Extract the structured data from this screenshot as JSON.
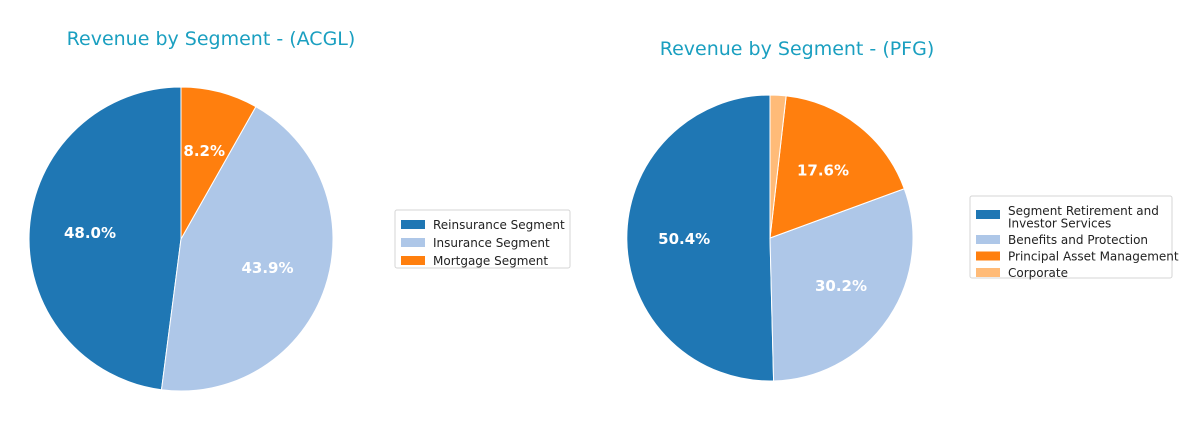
{
  "chart_data": [
    {
      "type": "pie",
      "title": "Revenue by Segment - (ACGL)",
      "legend_position": "right",
      "slices": [
        {
          "label": "Reinsurance Segment",
          "value": 48.0,
          "display": "48.0%",
          "color": "#1f77b4"
        },
        {
          "label": "Insurance Segment",
          "value": 43.9,
          "display": "43.9%",
          "color": "#aec7e8"
        },
        {
          "label": "Mortgage Segment",
          "value": 8.2,
          "display": "8.2%",
          "color": "#ff7f0e"
        }
      ]
    },
    {
      "type": "pie",
      "title": "Revenue by Segment - (PFG)",
      "legend_position": "right",
      "slices": [
        {
          "label": "Segment Retirement and Investor Services",
          "legend_lines": [
            "Segment Retirement and",
            "Investor Services"
          ],
          "value": 50.4,
          "display": "50.4%",
          "color": "#1f77b4"
        },
        {
          "label": "Benefits and Protection",
          "legend_lines": [
            "Benefits and Protection"
          ],
          "value": 30.2,
          "display": "30.2%",
          "color": "#aec7e8"
        },
        {
          "label": "Principal Asset Management",
          "legend_lines": [
            "Principal Asset Management"
          ],
          "value": 17.6,
          "display": "17.6%",
          "color": "#ff7f0e"
        },
        {
          "label": "Corporate",
          "legend_lines": [
            "Corporate"
          ],
          "value": 1.8,
          "display": "",
          "color": "#ffbb78"
        }
      ]
    }
  ],
  "title_color": "#1a9fc0"
}
